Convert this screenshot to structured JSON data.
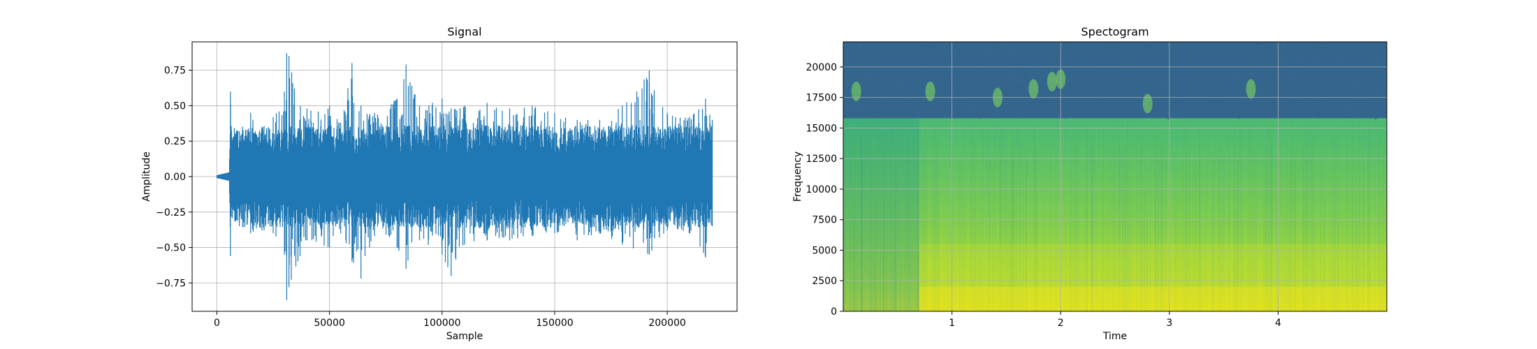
{
  "chart_data": [
    {
      "type": "line",
      "title": "Signal",
      "xlabel": "Sample",
      "ylabel": "Amplitude",
      "xlim": [
        -11000,
        231000
      ],
      "ylim": [
        -0.95,
        0.95
      ],
      "xticks": [
        0,
        50000,
        100000,
        150000,
        200000
      ],
      "xtick_labels": [
        "0",
        "50000",
        "100000",
        "150000",
        "200000"
      ],
      "yticks": [
        -0.75,
        -0.5,
        -0.25,
        0.0,
        0.25,
        0.5,
        0.75
      ],
      "ytick_labels": [
        "−0.75",
        "−0.50",
        "−0.25",
        "0.00",
        "0.25",
        "0.50",
        "0.75"
      ],
      "grid": true,
      "color": "#1f77b4",
      "series": [
        {
          "x": [
            0,
            5500,
            6000,
            6200,
            10000,
            15000,
            20000,
            25000,
            30000,
            31000,
            32000,
            40000,
            50000,
            55000,
            60000,
            64000,
            70000,
            80000,
            84000,
            90000,
            100000,
            104000,
            110000,
            120000,
            130000,
            140000,
            150000,
            160000,
            170000,
            180000,
            192000,
            200000,
            210000,
            217000,
            220000
          ],
          "y_max": [
            0.01,
            0.03,
            0.6,
            0.36,
            0.32,
            0.45,
            0.35,
            0.42,
            0.6,
            0.87,
            0.85,
            0.48,
            0.5,
            0.38,
            0.8,
            0.5,
            0.45,
            0.55,
            0.79,
            0.5,
            0.55,
            0.48,
            0.5,
            0.52,
            0.48,
            0.5,
            0.45,
            0.4,
            0.4,
            0.5,
            0.75,
            0.45,
            0.42,
            0.55,
            0.4
          ],
          "y_min": [
            -0.01,
            -0.03,
            -0.56,
            -0.28,
            -0.35,
            -0.4,
            -0.38,
            -0.4,
            -0.55,
            -0.87,
            -0.78,
            -0.45,
            -0.5,
            -0.4,
            -0.6,
            -0.72,
            -0.42,
            -0.5,
            -0.65,
            -0.45,
            -0.55,
            -0.7,
            -0.48,
            -0.45,
            -0.45,
            -0.42,
            -0.4,
            -0.45,
            -0.4,
            -0.48,
            -0.55,
            -0.38,
            -0.4,
            -0.57,
            -0.35
          ]
        }
      ]
    },
    {
      "type": "heatmap",
      "title": "Spectogram",
      "xlabel": "Time",
      "ylabel": "Frequency",
      "xlim": [
        0,
        5
      ],
      "ylim": [
        0,
        22050
      ],
      "xticks": [
        1,
        2,
        3,
        4
      ],
      "xtick_labels": [
        "1",
        "2",
        "3",
        "4"
      ],
      "yticks": [
        0,
        2500,
        5000,
        7500,
        10000,
        12500,
        15000,
        17500,
        20000
      ],
      "ytick_labels": [
        "0",
        "2500",
        "5000",
        "7500",
        "10000",
        "12500",
        "15000",
        "17500",
        "20000"
      ],
      "grid": true,
      "colormap": "viridis",
      "cutoff_frequency": 15800,
      "onset_time": 0.7
    }
  ]
}
